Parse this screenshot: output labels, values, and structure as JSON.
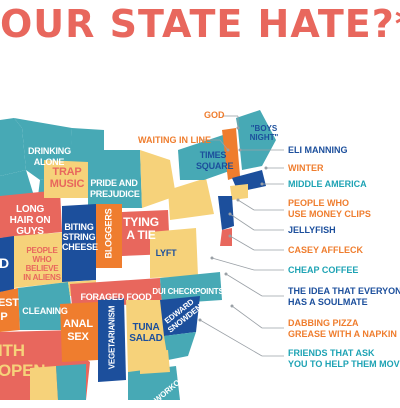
{
  "title": "OUR STATE HATE?*",
  "colors": {
    "title": "#e8675d",
    "teal": "#47a9b5",
    "navy": "#1c4f9c",
    "orange": "#ef7d2e",
    "yellow": "#f6d27a",
    "coral": "#e8675d",
    "callout_orange": "#ef7d2e",
    "callout_blue": "#1c4f9c",
    "callout_teal": "#1ea3b4"
  },
  "states": {
    "drinking_alone": "DRINKING ALONE",
    "trap_music": "TRAP MUSIC",
    "pride_and_prejudice": "PRIDE AND PREJUDICE",
    "times_square": "TIMES SQUARE",
    "long_hair_on_guys": "LONG HAIR ON GUYS",
    "biting_string_cheese": "BITING STRING CHEESE",
    "bloggers": "BLOGGERS",
    "tying_a_tie": "TYING A TIE",
    "people_who_believe_in_aliens": "PEOPLE WHO BELIEVE IN ALIENS",
    "lyft": "LYFT",
    "cleaning": "CLEANING",
    "foraged_food": "FORAGED FOOD",
    "dui_checkpoints": "DUI CHECKPOINTS",
    "anal_sex": "ANAL SEX",
    "vegetarianism": "VEGETARIANISM",
    "edward_snowden": "EDWARD SNOWDEN",
    "tuna_salad": "TUNA SALAD",
    "workout_partial": "WORKOUT C",
    "left_d": "D",
    "left_est": "EST",
    "left_p": "P",
    "left_ith": "ITH",
    "left_open": "OPEN"
  },
  "callouts": {
    "god": "GOD",
    "waiting_in_line": "WAITING IN LINE",
    "boys_night": "\"BOYS NIGHT\"",
    "eli_manning": "ELI MANNING",
    "winter": "WINTER",
    "middle_america": "MIDDLE AMERICA",
    "people_money_clips_1": "PEOPLE WHO",
    "people_money_clips_2": "USE MONEY CLIPS",
    "jellyfish": "JELLYFISH",
    "casey_affleck": "CASEY AFFLECK",
    "cheap_coffee": "CHEAP COFFEE",
    "soulmate_1": "THE IDEA THAT EVERYONE",
    "soulmate_2": "HAS A SOULMATE",
    "dabbing_1": "DABBING PIZZA",
    "dabbing_2": "GREASE WITH A NAPKIN",
    "friends_1": "FRIENDS THAT ASK",
    "friends_2": "YOU TO HELP THEM MOVE"
  }
}
